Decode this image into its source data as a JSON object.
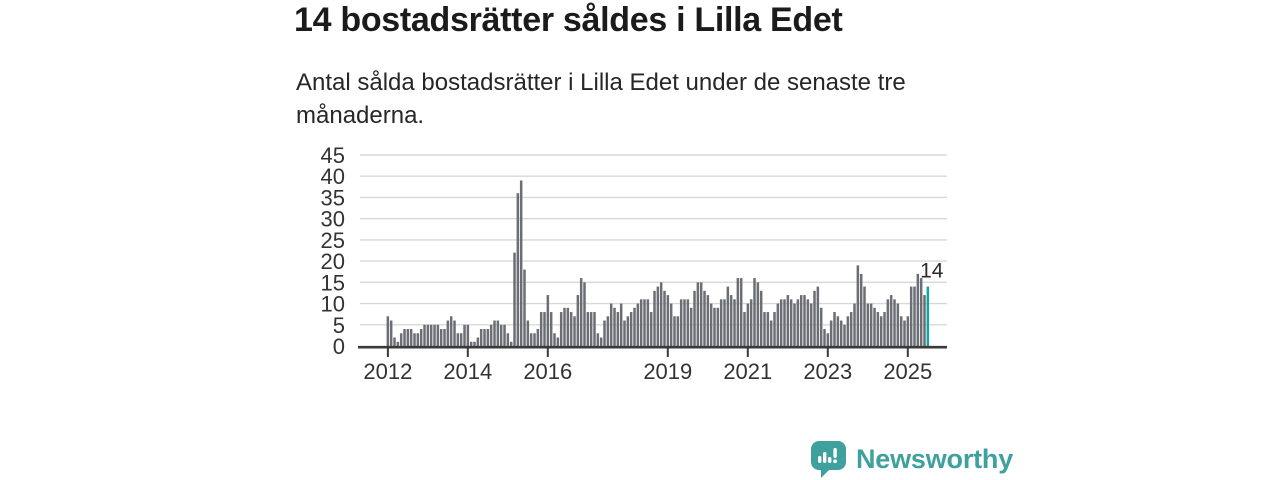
{
  "header": {
    "title": "14 bostadsrätter såldes i Lilla Edet",
    "subtitle": "Antal sålda bostadsrätter i Lilla Edet under de senaste tre månaderna."
  },
  "chart_data": {
    "type": "bar",
    "title": "14 bostadsrätter såldes i Lilla Edet",
    "subtitle": "Antal sålda bostadsrätter i Lilla Edet under de senaste tre månaderna.",
    "xlabel": "",
    "ylabel": "",
    "frequency": "monthly",
    "ylim": [
      0,
      45
    ],
    "y_ticks": [
      0,
      5,
      10,
      15,
      20,
      25,
      30,
      35,
      40,
      45
    ],
    "grid": "horizontal",
    "x_ticks": [
      {
        "label": "2012",
        "month_index": 0
      },
      {
        "label": "2014",
        "month_index": 24
      },
      {
        "label": "2016",
        "month_index": 48
      },
      {
        "label": "2019",
        "month_index": 84
      },
      {
        "label": "2021",
        "month_index": 108
      },
      {
        "label": "2023",
        "month_index": 132
      },
      {
        "label": "2025",
        "month_index": 156
      }
    ],
    "values": [
      7,
      6,
      2,
      1,
      3,
      4,
      4,
      4,
      3,
      3,
      4,
      5,
      5,
      5,
      5,
      5,
      4,
      4,
      6,
      7,
      6,
      3,
      3,
      5,
      5,
      1,
      1,
      2,
      4,
      4,
      4,
      5,
      6,
      6,
      5,
      5,
      3,
      1,
      22,
      36,
      39,
      18,
      6,
      3,
      3,
      4,
      8,
      8,
      12,
      8,
      3,
      2,
      8,
      9,
      9,
      8,
      7,
      12,
      16,
      15,
      8,
      8,
      8,
      3,
      2,
      6,
      7,
      10,
      9,
      8,
      10,
      6,
      7,
      8,
      9,
      10,
      11,
      11,
      11,
      8,
      13,
      14,
      15,
      13,
      12,
      10,
      7,
      7,
      11,
      11,
      11,
      9,
      13,
      15,
      15,
      13,
      12,
      10,
      9,
      9,
      11,
      11,
      14,
      12,
      11,
      16,
      16,
      8,
      10,
      11,
      16,
      15,
      13,
      8,
      8,
      6,
      8,
      10,
      11,
      11,
      12,
      11,
      10,
      11,
      12,
      12,
      11,
      10,
      13,
      14,
      9,
      4,
      3,
      6,
      8,
      7,
      6,
      5,
      7,
      8,
      10,
      19,
      17,
      14,
      10,
      10,
      9,
      8,
      7,
      8,
      11,
      12,
      11,
      10,
      7,
      6,
      7,
      14,
      14,
      17,
      16,
      12,
      14
    ],
    "highlight_last": true,
    "annotation": {
      "text": "14",
      "target": "last-bar"
    },
    "legend": "none"
  },
  "colors": {
    "bar": "#6B6E74",
    "highlight": "#0CA99D",
    "grid": "#D8D8D8",
    "axis": "#3A3A3A",
    "axis_text": "#333333",
    "annotation_text": "#2B2B2B",
    "brand_teal": "#3FA19D"
  },
  "brand": {
    "name": "Newsworthy"
  }
}
